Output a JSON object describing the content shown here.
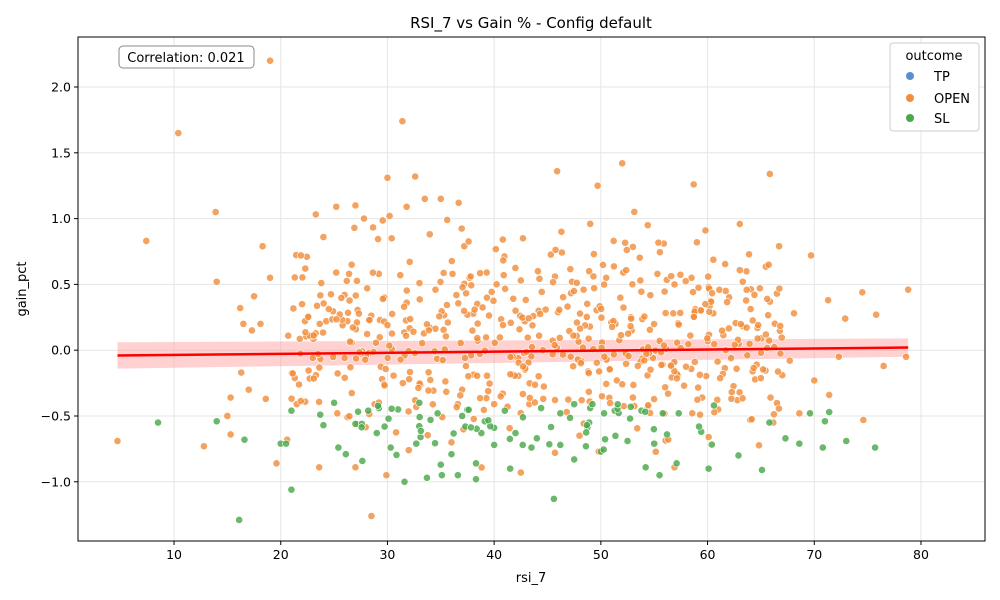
{
  "chart_data": {
    "type": "scatter",
    "title": "RSI_7 vs Gain % - Config default",
    "xlabel": "rsi_7",
    "ylabel": "gain_pct",
    "xlim": [
      1,
      86
    ],
    "ylim": [
      -1.45,
      2.38
    ],
    "x_ticks": [
      "10",
      "20",
      "30",
      "40",
      "50",
      "60",
      "70",
      "80"
    ],
    "x_tick_values": [
      10,
      20,
      30,
      40,
      50,
      60,
      70,
      80
    ],
    "y_ticks": [
      "−1.0",
      "−0.5",
      "0.0",
      "0.5",
      "1.0",
      "1.5",
      "2.0"
    ],
    "y_tick_values": [
      -1.0,
      -0.5,
      0.0,
      0.5,
      1.0,
      1.5,
      2.0
    ],
    "grid": true,
    "legend": {
      "title": "outcome",
      "placement": "top-right",
      "entries": [
        {
          "label": "TP",
          "color": "#5b8fc9"
        },
        {
          "label": "OPEN",
          "color": "#f28e3c"
        },
        {
          "label": "SL",
          "color": "#4aa84a"
        }
      ]
    },
    "annotation": "Correlation: 0.021",
    "series": [
      {
        "name": "OPEN",
        "color": "#f28e3c",
        "points": [
          [
            19.0,
            2.2
          ],
          [
            10.4,
            1.65
          ],
          [
            31.4,
            1.74
          ],
          [
            52.0,
            1.42
          ],
          [
            45.9,
            1.36
          ],
          [
            32.6,
            1.32
          ],
          [
            30.0,
            1.31
          ],
          [
            49.7,
            1.25
          ],
          [
            58.7,
            1.26
          ],
          [
            33.5,
            1.15
          ],
          [
            35.0,
            1.15
          ],
          [
            27.0,
            1.1
          ],
          [
            25.2,
            1.09
          ],
          [
            31.8,
            1.09
          ],
          [
            27.8,
            1.0
          ],
          [
            30.2,
            1.02
          ],
          [
            35.6,
            0.99
          ],
          [
            13.9,
            1.05
          ],
          [
            7.4,
            0.83
          ],
          [
            18.3,
            0.79
          ],
          [
            26.9,
            0.93
          ],
          [
            49.0,
            0.96
          ],
          [
            54.4,
            0.95
          ],
          [
            59.8,
            0.91
          ],
          [
            46.3,
            0.9
          ],
          [
            42.7,
            0.85
          ],
          [
            30.4,
            0.85
          ],
          [
            24.0,
            0.86
          ],
          [
            59.0,
            0.82
          ],
          [
            51.2,
            0.83
          ],
          [
            55.9,
            0.81
          ],
          [
            66.7,
            0.79
          ],
          [
            37.2,
            0.79
          ],
          [
            22.3,
            0.62
          ],
          [
            14.0,
            0.52
          ],
          [
            17.5,
            0.41
          ],
          [
            19.0,
            0.55
          ],
          [
            16.2,
            0.32
          ],
          [
            20.7,
            0.11
          ],
          [
            16.5,
            0.2
          ],
          [
            18.1,
            0.2
          ],
          [
            17.3,
            0.15
          ],
          [
            22.0,
            0.35
          ],
          [
            23.8,
            0.51
          ],
          [
            25.2,
            0.59
          ],
          [
            26.4,
            0.58
          ],
          [
            28.1,
            0.47
          ],
          [
            29.7,
            0.4
          ],
          [
            31.2,
            0.57
          ],
          [
            33.0,
            0.51
          ],
          [
            34.5,
            0.46
          ],
          [
            36.1,
            0.58
          ],
          [
            37.7,
            0.55
          ],
          [
            39.3,
            0.59
          ],
          [
            40.9,
            0.57
          ],
          [
            42.5,
            0.53
          ],
          [
            44.1,
            0.6
          ],
          [
            45.7,
            0.56
          ],
          [
            47.3,
            0.52
          ],
          [
            48.9,
            0.6
          ],
          [
            50.5,
            0.55
          ],
          [
            52.1,
            0.59
          ],
          [
            53.7,
            0.53
          ],
          [
            55.3,
            0.58
          ],
          [
            56.9,
            0.5
          ],
          [
            58.5,
            0.55
          ],
          [
            60.1,
            0.48
          ],
          [
            61.7,
            0.45
          ],
          [
            63.3,
            0.52
          ],
          [
            64.9,
            0.47
          ],
          [
            66.5,
            0.43
          ],
          [
            68.1,
            0.28
          ],
          [
            69.7,
            0.72
          ],
          [
            71.3,
            0.38
          ],
          [
            72.9,
            0.24
          ],
          [
            74.5,
            0.44
          ],
          [
            75.8,
            0.27
          ],
          [
            78.8,
            0.46
          ],
          [
            15.3,
            -0.36
          ],
          [
            15.0,
            -0.5
          ],
          [
            15.3,
            -0.64
          ],
          [
            12.8,
            -0.73
          ],
          [
            4.7,
            -0.69
          ],
          [
            16.3,
            -0.17
          ],
          [
            17.0,
            -0.3
          ],
          [
            18.6,
            -0.37
          ],
          [
            19.6,
            -0.86
          ],
          [
            20.6,
            -0.68
          ],
          [
            23.6,
            -0.89
          ],
          [
            27.0,
            -0.89
          ],
          [
            28.5,
            -1.26
          ],
          [
            29.9,
            -0.95
          ],
          [
            32.0,
            -0.76
          ],
          [
            36.0,
            -0.7
          ],
          [
            42.5,
            -0.93
          ],
          [
            45.7,
            -0.78
          ],
          [
            48.0,
            -0.65
          ],
          [
            49.8,
            -0.77
          ],
          [
            56.9,
            -0.89
          ],
          [
            60.1,
            -0.66
          ],
          [
            64.0,
            -0.53
          ],
          [
            67.0,
            -0.19
          ],
          [
            70.0,
            -0.23
          ],
          [
            71.4,
            -0.34
          ],
          [
            68.6,
            -0.48
          ],
          [
            74.6,
            -0.53
          ],
          [
            76.5,
            -0.12
          ],
          [
            78.6,
            -0.05
          ],
          [
            72.3,
            -0.05
          ],
          [
            67.7,
            -0.08
          ],
          [
            65.0,
            -0.02
          ],
          [
            62.2,
            -0.06
          ],
          [
            63.0,
            -0.32
          ],
          [
            61.0,
            -0.45
          ],
          [
            59.3,
            -0.49
          ],
          [
            57.8,
            -0.27
          ],
          [
            54.4,
            -0.43
          ],
          [
            51.5,
            -0.23
          ],
          [
            48.2,
            -0.38
          ],
          [
            44.6,
            -0.37
          ],
          [
            40.8,
            -0.33
          ],
          [
            37.0,
            -0.3
          ],
          [
            33.1,
            -0.26
          ],
          [
            29.5,
            -0.22
          ],
          [
            26.0,
            -0.21
          ],
          [
            23.3,
            -0.19
          ],
          [
            21.5,
            -0.41
          ],
          [
            25.3,
            -0.48
          ],
          [
            28.8,
            -0.41
          ],
          [
            32.6,
            -0.38
          ],
          [
            36.6,
            -0.41
          ],
          [
            40.0,
            -0.41
          ],
          [
            43.3,
            -0.41
          ],
          [
            46.8,
            -0.47
          ],
          [
            50.1,
            -0.35
          ],
          [
            53.0,
            -0.36
          ],
          [
            56.3,
            -0.33
          ],
          [
            59.5,
            -0.36
          ],
          [
            62.8,
            -0.38
          ],
          [
            65.9,
            -0.36
          ]
        ],
        "cloud": {
          "count": 520,
          "x_range": [
            21,
            67
          ],
          "y_center": 0.1,
          "y_spread": 0.33,
          "seed": 7
        }
      },
      {
        "name": "SL",
        "color": "#4aa84a",
        "points": [
          [
            16.1,
            -1.29
          ],
          [
            21.0,
            -1.06
          ],
          [
            8.5,
            -0.55
          ],
          [
            14.0,
            -0.54
          ],
          [
            16.6,
            -0.68
          ],
          [
            20.0,
            -0.71
          ],
          [
            20.5,
            -0.71
          ],
          [
            21.0,
            -0.46
          ],
          [
            23.7,
            -0.49
          ],
          [
            24.0,
            -0.57
          ],
          [
            25.4,
            -0.74
          ],
          [
            26.1,
            -0.79
          ],
          [
            27.0,
            -0.56
          ],
          [
            28.2,
            -0.46
          ],
          [
            29.0,
            -0.63
          ],
          [
            30.3,
            -0.74
          ],
          [
            31.6,
            -1.0
          ],
          [
            32.7,
            -0.71
          ],
          [
            33.7,
            -0.97
          ],
          [
            35.0,
            -0.87
          ],
          [
            35.1,
            -0.95
          ],
          [
            36.0,
            -0.79
          ],
          [
            36.6,
            -0.95
          ],
          [
            38.3,
            -0.86
          ],
          [
            38.3,
            -0.98
          ],
          [
            40.0,
            -0.72
          ],
          [
            41.5,
            -0.9
          ],
          [
            43.5,
            -0.74
          ],
          [
            45.6,
            -1.13
          ],
          [
            46.2,
            -0.72
          ],
          [
            47.5,
            -0.83
          ],
          [
            48.6,
            -0.73
          ],
          [
            50.0,
            -0.77
          ],
          [
            52.5,
            -0.69
          ],
          [
            54.2,
            -0.89
          ],
          [
            55.0,
            -0.71
          ],
          [
            55.5,
            -0.95
          ],
          [
            56.2,
            -0.64
          ],
          [
            57.1,
            -0.86
          ],
          [
            59.4,
            -0.62
          ],
          [
            60.1,
            -0.9
          ],
          [
            62.9,
            -0.8
          ],
          [
            65.1,
            -0.91
          ],
          [
            65.8,
            -0.55
          ],
          [
            67.3,
            -0.67
          ],
          [
            68.6,
            -0.71
          ],
          [
            69.6,
            -0.48
          ],
          [
            70.8,
            -0.74
          ],
          [
            71.0,
            -0.54
          ],
          [
            71.4,
            -0.47
          ],
          [
            73.0,
            -0.69
          ],
          [
            75.7,
            -0.74
          ],
          [
            25.0,
            -0.4
          ],
          [
            29.2,
            -0.44
          ],
          [
            31.0,
            -0.45
          ],
          [
            34.7,
            -0.48
          ],
          [
            37.0,
            -0.5
          ],
          [
            38.8,
            -0.63
          ],
          [
            40.0,
            -0.59
          ],
          [
            41.0,
            -0.46
          ],
          [
            42.7,
            -0.51
          ],
          [
            44.4,
            -0.44
          ],
          [
            46.2,
            -0.48
          ],
          [
            47.5,
            -0.41
          ],
          [
            48.9,
            -0.55
          ],
          [
            50.3,
            -0.48
          ],
          [
            52.8,
            -0.43
          ],
          [
            53.8,
            -0.46
          ],
          [
            55.8,
            -0.48
          ],
          [
            57.3,
            -0.48
          ],
          [
            59.2,
            -0.58
          ],
          [
            60.6,
            -0.42
          ],
          [
            37.3,
            -0.58
          ],
          [
            33.1,
            -0.66
          ],
          [
            30.1,
            -0.52
          ],
          [
            44.0,
            -0.67
          ],
          [
            42.0,
            -0.63
          ],
          [
            49.0,
            -0.44
          ],
          [
            51.3,
            -0.46
          ],
          [
            27.6,
            -0.56
          ]
        ],
        "cloud": {
          "count": 40,
          "x_range": [
            25,
            62
          ],
          "y_center": -0.6,
          "y_spread": 0.12,
          "seed": 21
        }
      }
    ],
    "regression": {
      "color": "#ff0000",
      "band_color": "#ff9999",
      "start": [
        4.7,
        -0.04
      ],
      "end": [
        78.8,
        0.02
      ],
      "ci_start": [
        -0.14,
        0.06
      ],
      "ci_end": [
        -0.05,
        0.09
      ]
    }
  }
}
